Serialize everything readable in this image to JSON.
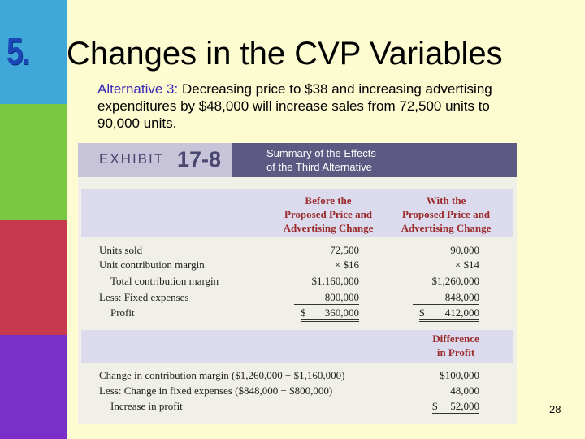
{
  "slide": {
    "number": "5.",
    "title": "Changes in the CVP Variables",
    "subtitle_lead": "Alternative 3:",
    "subtitle_body": " Decreasing price to $38 and increasing advertising expenditures by $48,000 will increase sales from 72,500 units to 90,000 units.",
    "page_number": "28"
  },
  "colors": {
    "stripe_blue": "#3fa8d8",
    "stripe_green": "#7ac943",
    "stripe_red": "#c8384f",
    "stripe_purple": "#7b2fc9",
    "background": "#fdfbd0",
    "header_text": "#9b2a2a"
  },
  "exhibit": {
    "word": "EXHIBIT",
    "number": "17-8",
    "title_line1": "Summary of the Effects",
    "title_line2": "of the Third Alternative",
    "col_before": [
      "Before the",
      "Proposed Price and",
      "Advertising Change"
    ],
    "col_with": [
      "With the",
      "Proposed Price and",
      "Advertising Change"
    ],
    "col_diff": [
      "Difference",
      "in Profit"
    ],
    "rows": [
      {
        "label": "Units sold",
        "before": "72,500",
        "with": "90,000"
      },
      {
        "label": "Unit contribution margin",
        "before": "× $16",
        "with": "× $14"
      },
      {
        "label": "Total contribution margin",
        "before": "$1,160,000",
        "with": "$1,260,000"
      },
      {
        "label": "Less: Fixed expenses",
        "before": "800,000",
        "with": "848,000"
      },
      {
        "label": "Profit",
        "before_sym": "$",
        "before": "360,000",
        "with_sym": "$",
        "with": "412,000"
      }
    ],
    "diff_rows": [
      {
        "label": "Change in contribution margin ($1,260,000 − $1,160,000)",
        "value": "$100,000"
      },
      {
        "label": "Less: Change in fixed expenses ($848,000 − $800,000)",
        "value": "48,000"
      },
      {
        "label": "Increase in profit",
        "sym": "$",
        "value": "52,000"
      }
    ]
  }
}
